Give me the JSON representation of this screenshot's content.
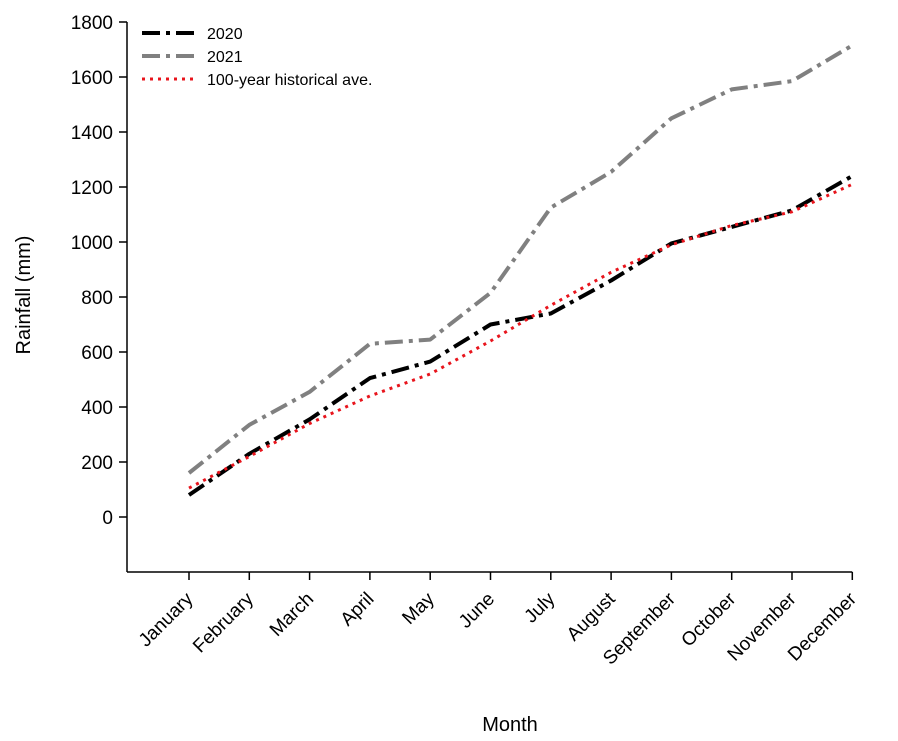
{
  "chart_data": {
    "type": "line",
    "title": "",
    "xlabel": "Month",
    "ylabel": "Rainfall (mm)",
    "categories": [
      "January",
      "February",
      "March",
      "April",
      "May",
      "June",
      "July",
      "August",
      "September",
      "October",
      "November",
      "December"
    ],
    "ylim": [
      -200,
      1800
    ],
    "yticks": [
      0,
      200,
      400,
      600,
      800,
      1000,
      1200,
      1400,
      1600,
      1800
    ],
    "grid": false,
    "legend_position": "top-left",
    "series": [
      {
        "name": "2020",
        "color": "#000000",
        "style": "dash-dot",
        "values": [
          80,
          230,
          355,
          505,
          565,
          700,
          740,
          860,
          995,
          1055,
          1115,
          1240
        ]
      },
      {
        "name": "2021",
        "color": "#808080",
        "style": "dash-dot",
        "values": [
          160,
          335,
          455,
          630,
          645,
          815,
          1125,
          1255,
          1450,
          1555,
          1585,
          1715
        ]
      },
      {
        "name": "100-year historical ave.",
        "color": "#e8141c",
        "style": "dotted",
        "values": [
          105,
          220,
          340,
          440,
          520,
          640,
          770,
          890,
          990,
          1060,
          1110,
          1210
        ]
      }
    ]
  }
}
